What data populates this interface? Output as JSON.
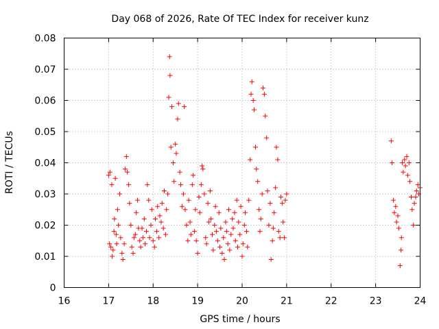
{
  "chart_data": {
    "type": "scatter",
    "title": "Day 068 of 2026, Rate Of TEC Index for receiver kunz",
    "xlabel": "GPS time / hours",
    "ylabel": "ROTI / TECUs",
    "xlim": [
      16,
      24
    ],
    "ylim": [
      0,
      0.08
    ],
    "x_ticks": [
      "16",
      "17",
      "18",
      "19",
      "20",
      "21",
      "22",
      "23",
      "24"
    ],
    "y_ticks": [
      "0",
      "0.01",
      "0.02",
      "0.03",
      "0.04",
      "0.05",
      "0.06",
      "0.07",
      "0.08"
    ],
    "grid": true,
    "legend": "none",
    "marker": "plus",
    "color": "#ff0000",
    "points": [
      [
        17.0,
        0.036
      ],
      [
        17.02,
        0.014
      ],
      [
        17.03,
        0.037
      ],
      [
        17.05,
        0.013
      ],
      [
        17.07,
        0.033
      ],
      [
        17.08,
        0.01
      ],
      [
        17.1,
        0.012
      ],
      [
        17.12,
        0.018
      ],
      [
        17.13,
        0.022
      ],
      [
        17.15,
        0.035
      ],
      [
        17.17,
        0.017
      ],
      [
        17.18,
        0.014
      ],
      [
        17.2,
        0.025
      ],
      [
        17.22,
        0.02
      ],
      [
        17.25,
        0.03
      ],
      [
        17.27,
        0.016
      ],
      [
        17.3,
        0.011
      ],
      [
        17.32,
        0.009
      ],
      [
        17.35,
        0.014
      ],
      [
        17.37,
        0.038
      ],
      [
        17.4,
        0.042
      ],
      [
        17.42,
        0.037
      ],
      [
        17.45,
        0.033
      ],
      [
        17.47,
        0.027
      ],
      [
        17.5,
        0.02
      ],
      [
        17.52,
        0.013
      ],
      [
        17.55,
        0.011
      ],
      [
        17.57,
        0.016
      ],
      [
        17.6,
        0.017
      ],
      [
        17.62,
        0.024
      ],
      [
        17.65,
        0.028
      ],
      [
        17.67,
        0.019
      ],
      [
        17.7,
        0.015
      ],
      [
        17.72,
        0.013
      ],
      [
        17.75,
        0.019
      ],
      [
        17.77,
        0.016
      ],
      [
        17.8,
        0.022
      ],
      [
        17.82,
        0.014
      ],
      [
        17.85,
        0.018
      ],
      [
        17.87,
        0.033
      ],
      [
        17.9,
        0.028
      ],
      [
        17.92,
        0.016
      ],
      [
        17.95,
        0.02
      ],
      [
        17.97,
        0.025
      ],
      [
        18.0,
        0.015
      ],
      [
        18.03,
        0.013
      ],
      [
        18.05,
        0.022
      ],
      [
        18.08,
        0.018
      ],
      [
        18.1,
        0.026
      ],
      [
        18.13,
        0.016
      ],
      [
        18.15,
        0.023
      ],
      [
        18.18,
        0.021
      ],
      [
        18.2,
        0.027
      ],
      [
        18.23,
        0.019
      ],
      [
        18.25,
        0.031
      ],
      [
        18.28,
        0.017
      ],
      [
        18.3,
        0.025
      ],
      [
        18.33,
        0.03
      ],
      [
        18.35,
        0.061
      ],
      [
        18.37,
        0.074
      ],
      [
        18.38,
        0.068
      ],
      [
        18.4,
        0.045
      ],
      [
        18.42,
        0.058
      ],
      [
        18.45,
        0.04
      ],
      [
        18.47,
        0.034
      ],
      [
        18.5,
        0.046
      ],
      [
        18.52,
        0.043
      ],
      [
        18.55,
        0.054
      ],
      [
        18.57,
        0.059
      ],
      [
        18.6,
        0.037
      ],
      [
        18.62,
        0.033
      ],
      [
        18.65,
        0.026
      ],
      [
        18.68,
        0.03
      ],
      [
        18.7,
        0.058
      ],
      [
        18.72,
        0.025
      ],
      [
        18.75,
        0.02
      ],
      [
        18.78,
        0.015
      ],
      [
        18.8,
        0.028
      ],
      [
        18.83,
        0.021
      ],
      [
        18.85,
        0.017
      ],
      [
        18.88,
        0.033
      ],
      [
        18.9,
        0.036
      ],
      [
        18.93,
        0.018
      ],
      [
        18.95,
        0.025
      ],
      [
        18.97,
        0.015
      ],
      [
        19.0,
        0.011
      ],
      [
        19.03,
        0.029
      ],
      [
        19.05,
        0.024
      ],
      [
        19.08,
        0.033
      ],
      [
        19.1,
        0.039
      ],
      [
        19.12,
        0.038
      ],
      [
        19.15,
        0.03
      ],
      [
        19.18,
        0.016
      ],
      [
        19.2,
        0.014
      ],
      [
        19.23,
        0.027
      ],
      [
        19.25,
        0.021
      ],
      [
        19.28,
        0.031
      ],
      [
        19.3,
        0.022
      ],
      [
        19.33,
        0.017
      ],
      [
        19.35,
        0.012
      ],
      [
        19.38,
        0.02
      ],
      [
        19.4,
        0.026
      ],
      [
        19.42,
        0.018
      ],
      [
        19.45,
        0.015
      ],
      [
        19.48,
        0.024
      ],
      [
        19.5,
        0.013
      ],
      [
        19.52,
        0.019
      ],
      [
        19.55,
        0.011
      ],
      [
        19.58,
        0.016
      ],
      [
        19.6,
        0.009
      ],
      [
        19.63,
        0.021
      ],
      [
        19.65,
        0.018
      ],
      [
        19.68,
        0.014
      ],
      [
        19.7,
        0.025
      ],
      [
        19.72,
        0.012
      ],
      [
        19.75,
        0.017
      ],
      [
        19.78,
        0.022
      ],
      [
        19.8,
        0.019
      ],
      [
        19.83,
        0.024
      ],
      [
        19.85,
        0.015
      ],
      [
        19.88,
        0.028
      ],
      [
        19.9,
        0.013
      ],
      [
        19.92,
        0.021
      ],
      [
        19.95,
        0.017
      ],
      [
        19.97,
        0.026
      ],
      [
        20.0,
        0.01
      ],
      [
        20.02,
        0.014
      ],
      [
        20.05,
        0.02
      ],
      [
        20.07,
        0.024
      ],
      [
        20.1,
        0.018
      ],
      [
        20.12,
        0.013
      ],
      [
        20.15,
        0.028
      ],
      [
        20.18,
        0.041
      ],
      [
        20.2,
        0.062
      ],
      [
        20.22,
        0.066
      ],
      [
        20.25,
        0.06
      ],
      [
        20.27,
        0.057
      ],
      [
        20.3,
        0.045
      ],
      [
        20.32,
        0.038
      ],
      [
        20.35,
        0.034
      ],
      [
        20.38,
        0.025
      ],
      [
        20.4,
        0.018
      ],
      [
        20.42,
        0.022
      ],
      [
        20.45,
        0.03
      ],
      [
        20.47,
        0.064
      ],
      [
        20.5,
        0.062
      ],
      [
        20.52,
        0.055
      ],
      [
        20.55,
        0.048
      ],
      [
        20.57,
        0.031
      ],
      [
        20.6,
        0.02
      ],
      [
        20.63,
        0.027
      ],
      [
        20.65,
        0.009
      ],
      [
        20.68,
        0.015
      ],
      [
        20.7,
        0.019
      ],
      [
        20.72,
        0.024
      ],
      [
        20.75,
        0.032
      ],
      [
        20.77,
        0.045
      ],
      [
        20.8,
        0.041
      ],
      [
        20.82,
        0.018
      ],
      [
        20.85,
        0.016
      ],
      [
        20.87,
        0.029
      ],
      [
        20.9,
        0.027
      ],
      [
        20.92,
        0.021
      ],
      [
        20.95,
        0.016
      ],
      [
        20.97,
        0.028
      ],
      [
        21.0,
        0.03
      ],
      [
        23.35,
        0.047
      ],
      [
        23.37,
        0.04
      ],
      [
        23.4,
        0.028
      ],
      [
        23.42,
        0.024
      ],
      [
        23.45,
        0.026
      ],
      [
        23.47,
        0.021
      ],
      [
        23.5,
        0.023
      ],
      [
        23.52,
        0.019
      ],
      [
        23.55,
        0.007
      ],
      [
        23.57,
        0.012
      ],
      [
        23.58,
        0.016
      ],
      [
        23.6,
        0.04
      ],
      [
        23.62,
        0.037
      ],
      [
        23.65,
        0.041
      ],
      [
        23.67,
        0.039
      ],
      [
        23.7,
        0.042
      ],
      [
        23.72,
        0.036
      ],
      [
        23.75,
        0.04
      ],
      [
        23.77,
        0.034
      ],
      [
        23.8,
        0.029
      ],
      [
        23.82,
        0.025
      ],
      [
        23.85,
        0.02
      ],
      [
        23.87,
        0.027
      ],
      [
        23.9,
        0.029
      ],
      [
        23.92,
        0.031
      ],
      [
        23.95,
        0.033
      ],
      [
        23.97,
        0.03
      ],
      [
        24.0,
        0.032
      ]
    ]
  }
}
